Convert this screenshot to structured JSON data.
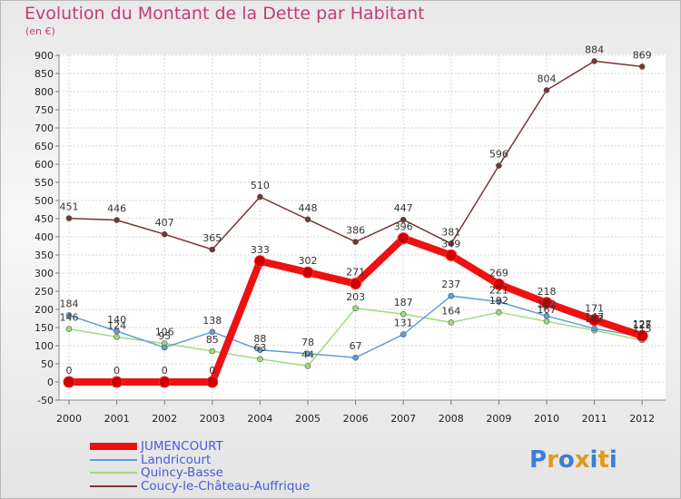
{
  "title": "Evolution du Montant de la Dette par Habitant",
  "unit": "(en €)",
  "logo": {
    "letters": [
      "P",
      "r",
      "o",
      "x",
      "i",
      "t",
      "i"
    ],
    "colors": [
      "#3a7ed6",
      "#e2991c",
      "#3a7ed6",
      "#e2991c",
      "#3a7ed6",
      "#e2991c",
      "#3a7ed6"
    ]
  },
  "chart_data": {
    "type": "line",
    "categories": [
      "2000",
      "2001",
      "2002",
      "2003",
      "2004",
      "2005",
      "2006",
      "2007",
      "2008",
      "2009",
      "2010",
      "2011",
      "2012"
    ],
    "ylim": [
      -50,
      900
    ],
    "yticks": [
      "-50",
      "0",
      "50",
      "100",
      "150",
      "200",
      "250",
      "300",
      "350",
      "400",
      "450",
      "500",
      "550",
      "600",
      "650",
      "700",
      "750",
      "800",
      "850",
      "900"
    ],
    "grid": true,
    "legend_position": "bottom-left",
    "series": [
      {
        "name": "JUMENCOURT",
        "color": "#ee1111",
        "values": [
          0,
          0,
          0,
          0,
          333,
          302,
          271,
          396,
          349,
          269,
          218,
          171,
          127
        ],
        "labels": [
          "0",
          "0",
          "0",
          "0",
          "333",
          "302",
          "271",
          "396",
          "349",
          "269",
          "218",
          "171",
          "127"
        ]
      },
      {
        "name": "Landricourt",
        "color": "#5f9fd6",
        "values": [
          184,
          140,
          95,
          138,
          88,
          78,
          67,
          131,
          237,
          221,
          182,
          147,
          125
        ],
        "labels": [
          "184",
          "140",
          "95",
          "138",
          "88",
          "78",
          "67",
          "131",
          "237",
          "221",
          "182",
          "147",
          "125"
        ]
      },
      {
        "name": "Quincy-Basse",
        "color": "#9fdb7c",
        "values": [
          146,
          124,
          106,
          85,
          63,
          44,
          203,
          187,
          164,
          192,
          167,
          142,
          115
        ],
        "labels": [
          "146",
          "124",
          "106",
          "85",
          "63",
          "44",
          "203",
          "187",
          "164",
          "192",
          "167",
          "142",
          "115"
        ]
      },
      {
        "name": "Coucy-le-Château-Auffrique",
        "color": "#7a3434",
        "values": [
          451,
          446,
          407,
          365,
          510,
          448,
          386,
          447,
          381,
          596,
          804,
          884,
          869
        ],
        "labels": [
          "451",
          "446",
          "407",
          "365",
          "510",
          "448",
          "386",
          "447",
          "381",
          "596",
          "804",
          "884",
          "869"
        ]
      }
    ]
  }
}
